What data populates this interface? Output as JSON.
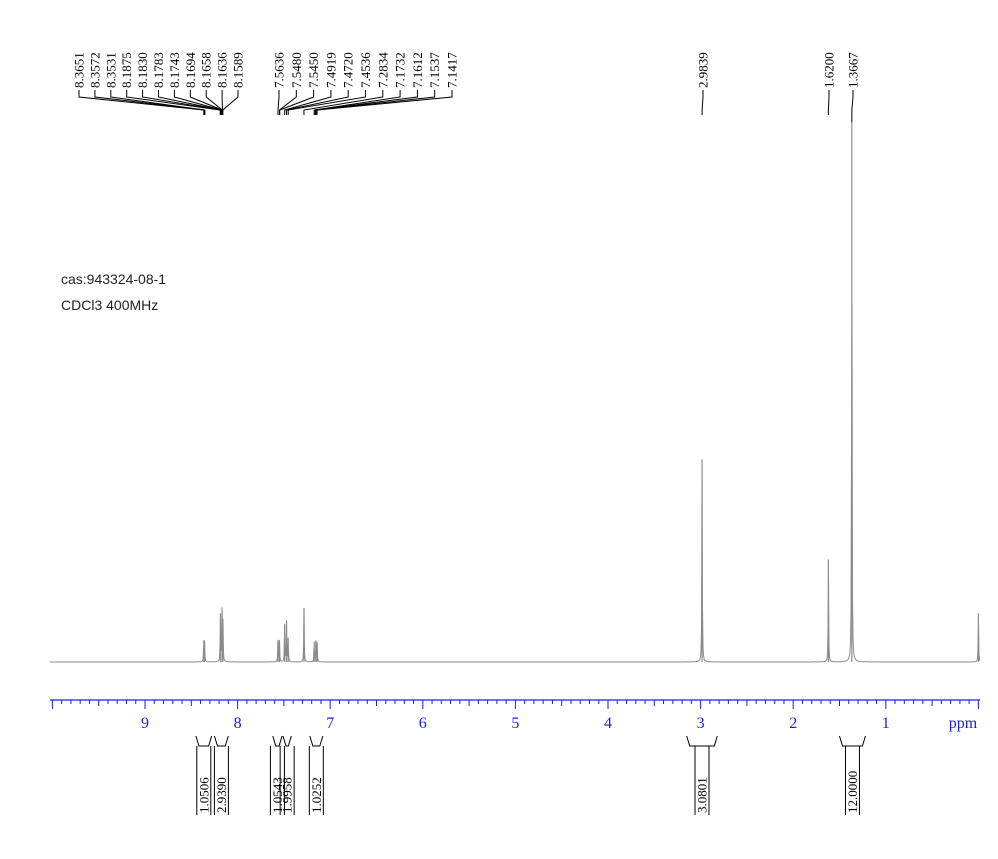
{
  "sample": {
    "cas": "cas:943324-08-1",
    "conditions": "CDCl3 400MHz"
  },
  "chart_data": {
    "type": "line",
    "title": "",
    "xlabel": "ppm",
    "ylabel": "",
    "xlim": [
      10.0,
      -0.05
    ],
    "x_reversed": true,
    "grid": false,
    "x_ticks": [
      9,
      8,
      7,
      6,
      5,
      4,
      3,
      2,
      1
    ],
    "x_unit": "ppm",
    "colors": {
      "spectrum": "#8a8a8a",
      "axis": "#1a1aff",
      "labels": "#000000"
    },
    "peak_labels": [
      {
        "group": "aromatic-left",
        "values": [
          "8.3651",
          "8.3572",
          "8.3531",
          "8.1875",
          "8.1830",
          "8.1783",
          "8.1743",
          "8.1694",
          "8.1658",
          "8.1636",
          "8.1589"
        ]
      },
      {
        "group": "aromatic-right",
        "values": [
          "7.5636",
          "7.5480",
          "7.5450",
          "7.4919",
          "7.4720",
          "7.4536",
          "7.2834",
          "7.1732",
          "7.1612",
          "7.1537",
          "7.1417"
        ]
      },
      {
        "group": "methyl",
        "values": [
          "2.9839"
        ]
      },
      {
        "group": "aliphatic",
        "values": [
          "1.6200",
          "1.3667"
        ]
      }
    ],
    "peaks": [
      {
        "x": 8.365,
        "y": 0.04
      },
      {
        "x": 8.357,
        "y": 0.036
      },
      {
        "x": 8.186,
        "y": 0.09
      },
      {
        "x": 8.168,
        "y": 0.095
      },
      {
        "x": 8.159,
        "y": 0.08
      },
      {
        "x": 7.564,
        "y": 0.04
      },
      {
        "x": 7.548,
        "y": 0.04
      },
      {
        "x": 7.492,
        "y": 0.07
      },
      {
        "x": 7.472,
        "y": 0.075
      },
      {
        "x": 7.454,
        "y": 0.045
      },
      {
        "x": 7.283,
        "y": 0.1
      },
      {
        "x": 7.173,
        "y": 0.038
      },
      {
        "x": 7.155,
        "y": 0.04
      },
      {
        "x": 7.142,
        "y": 0.036
      },
      {
        "x": 2.984,
        "y": 0.375
      },
      {
        "x": 1.62,
        "y": 0.19
      },
      {
        "x": 1.367,
        "y": 1.0
      },
      {
        "x": 0.0,
        "y": 0.09
      }
    ],
    "integrals": [
      {
        "label": "1.0506",
        "from": 8.45,
        "to": 8.28
      },
      {
        "label": "2.9390",
        "from": 8.25,
        "to": 8.1
      },
      {
        "label": "1.0543",
        "from": 7.62,
        "to": 7.52
      },
      {
        "label": "1.9958",
        "from": 7.51,
        "to": 7.42
      },
      {
        "label": "1.0252",
        "from": 7.22,
        "to": 7.08
      },
      {
        "label": "3.0801",
        "from": 3.15,
        "to": 2.82
      },
      {
        "label": "12.0000",
        "from": 1.5,
        "to": 1.22
      }
    ]
  }
}
